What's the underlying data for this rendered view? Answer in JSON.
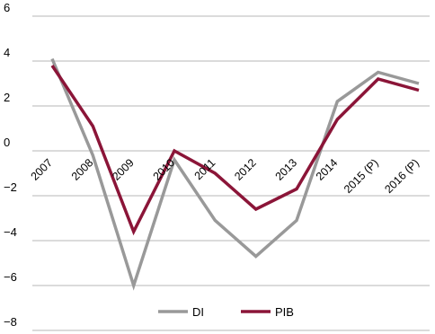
{
  "chart_data": {
    "type": "line",
    "categories": [
      "2007",
      "2008",
      "2009",
      "2010",
      "2011",
      "2012",
      "2013",
      "2014",
      "2015 (P)",
      "2016 (P)"
    ],
    "series": [
      {
        "name": "DI",
        "color": "#999999",
        "values": [
          4.1,
          -0.2,
          -6.0,
          -0.4,
          -3.1,
          -4.7,
          -3.1,
          2.2,
          3.5,
          3.0
        ]
      },
      {
        "name": "PIB",
        "color": "#8b1538",
        "values": [
          3.8,
          1.1,
          -3.6,
          0.0,
          -1.0,
          -2.6,
          -1.7,
          1.4,
          3.2,
          2.7
        ]
      }
    ],
    "yticks": [
      "6",
      "4",
      "2",
      "0",
      "−2",
      "−4",
      "−6",
      "−8"
    ],
    "ylim": [
      -8,
      6
    ],
    "grid": true,
    "legend_position": "bottom-center"
  }
}
